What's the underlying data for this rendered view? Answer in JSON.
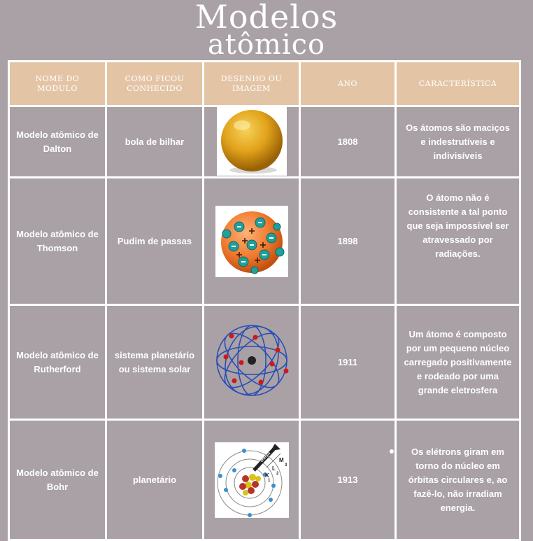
{
  "title": {
    "line1": "Modelos",
    "line2": "atômico"
  },
  "headers": {
    "name": "NOME DO MODULO",
    "known": "COMO FICOU CONHECIDO",
    "drawing": "DESENHO OU IMAGEM",
    "year": "ANO",
    "feature": "CARACTERÍSTICA"
  },
  "rows": [
    {
      "name": "Modelo atômico de Dalton",
      "known": "bola de bilhar",
      "image": "dalton-sphere",
      "year": "1808",
      "feature": "Os átomos são maciços e indestrutíveis e indivisíveis"
    },
    {
      "name": "Modelo atômico de Thomson",
      "known": "Pudim de passas",
      "image": "thomson-plum-pudding",
      "year": "1898",
      "feature": "O átomo não é consistente a tal ponto que seja impossível ser atravessado por radiações."
    },
    {
      "name": "Modelo atômico de Rutherford",
      "known": "sistema planetário ou sistema solar",
      "image": "rutherford-orbits",
      "year": "1911",
      "feature": "Um átomo é composto por um pequeno núcleo carregado positivamente e rodeado por uma grande eletrosfera"
    },
    {
      "name": "Modelo atômico de Bohr",
      "known": "planetário",
      "image": "bohr-energy-levels",
      "year": "1913",
      "feature": "Os elétrons giram em torno do núcleo em órbitas circulares e, ao fazê-lo, não irradiam energia."
    }
  ],
  "bohr_labels": {
    "m": "M",
    "l": "L",
    "k": "K",
    "n3": "3",
    "n2": "2",
    "n1": "1",
    "arrow": "energia"
  },
  "colors": {
    "background": "#a9a1a5",
    "header": "#e3c5a6",
    "border": "#ffffff"
  }
}
